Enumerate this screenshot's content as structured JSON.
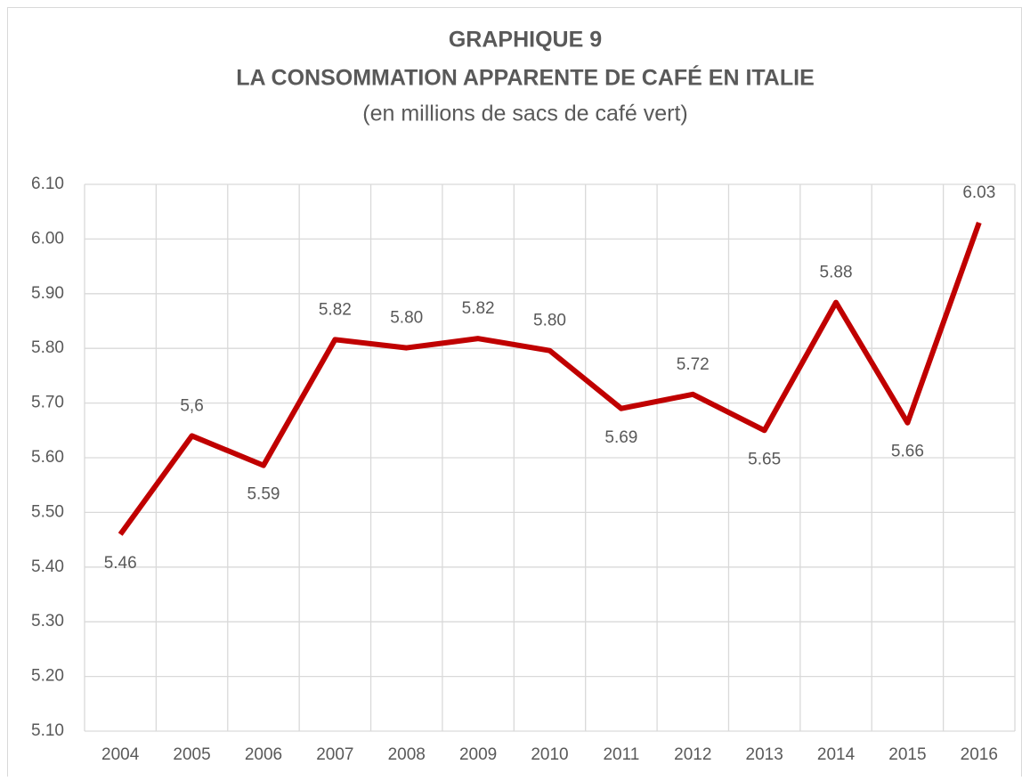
{
  "chart_data": {
    "type": "line",
    "title": [
      "GRAPHIQUE 9",
      "LA CONSOMMATION APPARENTE DE CAFÉ EN ITALIE"
    ],
    "subtitle": "(en millions de sacs de café vert)",
    "categories": [
      "2004",
      "2005",
      "2006",
      "2007",
      "2008",
      "2009",
      "2010",
      "2011",
      "2012",
      "2013",
      "2014",
      "2015",
      "2016"
    ],
    "series": [
      {
        "name": "Consommation",
        "color": "#c00000",
        "values": [
          5.46,
          5.64,
          5.586,
          5.816,
          5.801,
          5.818,
          5.796,
          5.69,
          5.716,
          5.65,
          5.884,
          5.664,
          6.03
        ],
        "value_labels": [
          "5.46",
          "5,6",
          "5.59",
          "5.82",
          "5.80",
          "5.82",
          "5.80",
          "5.69",
          "5.72",
          "5.65",
          "5.88",
          "5.66",
          "6.03"
        ]
      }
    ],
    "ylim": [
      5.1,
      6.1
    ],
    "yticks": [
      {
        "value": 5.1,
        "label": "5.10"
      },
      {
        "value": 5.2,
        "label": "5.20"
      },
      {
        "value": 5.3,
        "label": "5.30"
      },
      {
        "value": 5.4,
        "label": "5.40"
      },
      {
        "value": 5.5,
        "label": "5.50"
      },
      {
        "value": 5.6,
        "label": "5.60"
      },
      {
        "value": 5.7,
        "label": "5.70"
      },
      {
        "value": 5.8,
        "label": "5.80"
      },
      {
        "value": 5.9,
        "label": "5.90"
      },
      {
        "value": 6.0,
        "label": "6.00"
      },
      {
        "value": 6.1,
        "label": "6.10"
      }
    ],
    "grid": true
  }
}
